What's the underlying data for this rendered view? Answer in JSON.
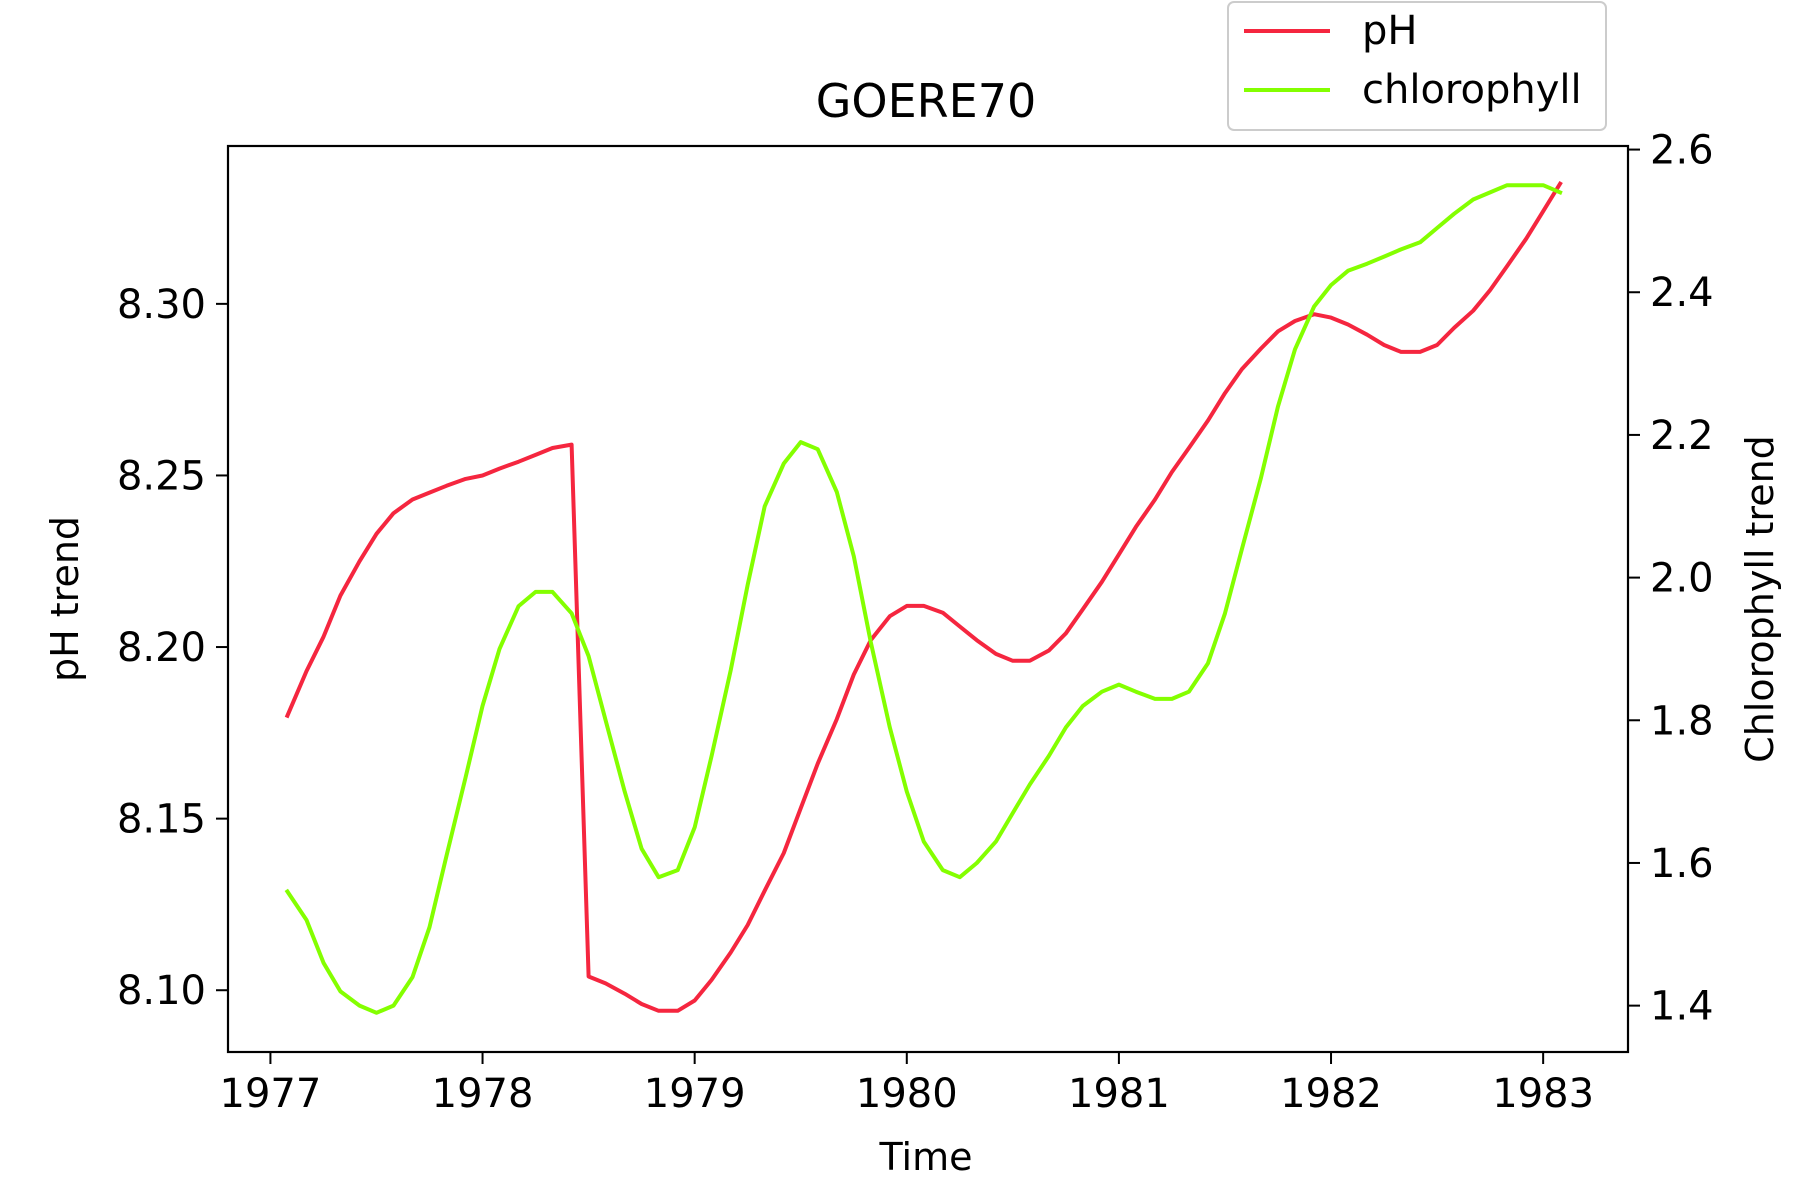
{
  "chart_data": {
    "type": "line",
    "title": "GOERE70",
    "xlabel": "Time",
    "ylabel": "pH trend",
    "ylabel_right": "Chlorophyll trend",
    "xlim": [
      1976.8,
      1983.4
    ],
    "ylim": [
      8.082,
      8.346
    ],
    "ylim_right": [
      1.335,
      2.605
    ],
    "x_ticks": [
      1977,
      1978,
      1979,
      1980,
      1981,
      1982,
      1983
    ],
    "y_ticks": [
      8.1,
      8.15,
      8.2,
      8.25,
      8.3
    ],
    "y_tick_labels": [
      "8.10",
      "8.15",
      "8.20",
      "8.25",
      "8.30"
    ],
    "y_ticks_right": [
      1.4,
      1.6,
      1.8,
      2.0,
      2.2,
      2.4,
      2.6
    ],
    "y_tick_labels_right": [
      "1.4",
      "1.6",
      "1.8",
      "2.0",
      "2.2",
      "2.4",
      "2.6"
    ],
    "grid": false,
    "legend_position": "top-right, above plot",
    "series": [
      {
        "name": "pH",
        "axis": "left",
        "color": "#f5263f",
        "x": [
          1977.08,
          1977.17,
          1977.25,
          1977.33,
          1977.42,
          1977.5,
          1977.58,
          1977.67,
          1977.75,
          1977.83,
          1977.92,
          1978.0,
          1978.08,
          1978.17,
          1978.25,
          1978.33,
          1978.42,
          1978.5,
          1978.58,
          1978.67,
          1978.75,
          1978.83,
          1978.92,
          1979.0,
          1979.08,
          1979.17,
          1979.25,
          1979.33,
          1979.42,
          1979.5,
          1979.58,
          1979.67,
          1979.75,
          1979.83,
          1979.92,
          1980.0,
          1980.08,
          1980.17,
          1980.25,
          1980.33,
          1980.42,
          1980.5,
          1980.58,
          1980.67,
          1980.75,
          1980.83,
          1980.92,
          1981.0,
          1981.08,
          1981.17,
          1981.25,
          1981.33,
          1981.42,
          1981.5,
          1981.58,
          1981.67,
          1981.75,
          1981.83,
          1981.92,
          1982.0,
          1982.08,
          1982.17,
          1982.25,
          1982.33,
          1982.42,
          1982.5,
          1982.58,
          1982.67,
          1982.75,
          1982.83,
          1982.92,
          1983.0,
          1983.08
        ],
        "values": [
          8.18,
          8.193,
          8.203,
          8.215,
          8.225,
          8.233,
          8.239,
          8.243,
          8.245,
          8.247,
          8.249,
          8.25,
          8.252,
          8.254,
          8.256,
          8.258,
          8.259,
          8.104,
          8.102,
          8.099,
          8.096,
          8.094,
          8.094,
          8.097,
          8.103,
          8.111,
          8.119,
          8.129,
          8.14,
          8.153,
          8.166,
          8.179,
          8.192,
          8.202,
          8.209,
          8.212,
          8.212,
          8.21,
          8.206,
          8.202,
          8.198,
          8.196,
          8.196,
          8.199,
          8.204,
          8.211,
          8.219,
          8.227,
          8.235,
          8.243,
          8.251,
          8.258,
          8.266,
          8.274,
          8.281,
          8.287,
          8.292,
          8.295,
          8.297,
          8.296,
          8.294,
          8.291,
          8.288,
          8.286,
          8.286,
          8.288,
          8.293,
          8.298,
          8.304,
          8.311,
          8.319,
          8.327,
          8.335
        ]
      },
      {
        "name": "chlorophyll",
        "axis": "right",
        "color": "#84ff00",
        "x": [
          1977.08,
          1977.17,
          1977.25,
          1977.33,
          1977.42,
          1977.5,
          1977.58,
          1977.67,
          1977.75,
          1977.83,
          1977.92,
          1978.0,
          1978.08,
          1978.17,
          1978.25,
          1978.33,
          1978.42,
          1978.5,
          1978.58,
          1978.67,
          1978.75,
          1978.83,
          1978.92,
          1979.0,
          1979.08,
          1979.17,
          1979.25,
          1979.33,
          1979.42,
          1979.5,
          1979.58,
          1979.67,
          1979.75,
          1979.83,
          1979.92,
          1980.0,
          1980.08,
          1980.17,
          1980.25,
          1980.33,
          1980.42,
          1980.5,
          1980.58,
          1980.67,
          1980.75,
          1980.83,
          1980.92,
          1981.0,
          1981.08,
          1981.17,
          1981.25,
          1981.33,
          1981.42,
          1981.5,
          1981.58,
          1981.67,
          1981.75,
          1981.83,
          1981.92,
          1982.0,
          1982.08,
          1982.17,
          1982.25,
          1982.33,
          1982.42,
          1982.5,
          1982.58,
          1982.67,
          1982.75,
          1982.83,
          1982.92,
          1983.0,
          1983.08
        ],
        "values": [
          1.56,
          1.52,
          1.46,
          1.42,
          1.4,
          1.39,
          1.4,
          1.44,
          1.51,
          1.61,
          1.72,
          1.82,
          1.9,
          1.96,
          1.98,
          1.98,
          1.95,
          1.89,
          1.8,
          1.7,
          1.62,
          1.58,
          1.59,
          1.65,
          1.75,
          1.87,
          1.99,
          2.1,
          2.16,
          2.19,
          2.18,
          2.12,
          2.03,
          1.91,
          1.79,
          1.7,
          1.63,
          1.59,
          1.58,
          1.6,
          1.63,
          1.67,
          1.71,
          1.75,
          1.79,
          1.82,
          1.84,
          1.85,
          1.84,
          1.83,
          1.83,
          1.84,
          1.88,
          1.95,
          2.04,
          2.14,
          2.24,
          2.32,
          2.38,
          2.41,
          2.43,
          2.44,
          2.45,
          2.46,
          2.47,
          2.49,
          2.51,
          2.53,
          2.54,
          2.55,
          2.55,
          2.55,
          2.54
        ]
      }
    ]
  }
}
